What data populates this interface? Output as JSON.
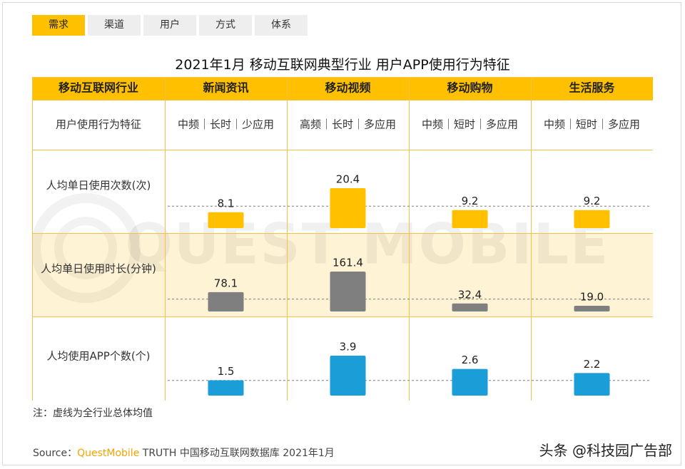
{
  "tabs": [
    {
      "label": "需求",
      "active": true
    },
    {
      "label": "渠道",
      "active": false
    },
    {
      "label": "用户",
      "active": false
    },
    {
      "label": "方式",
      "active": false
    },
    {
      "label": "体系",
      "active": false
    }
  ],
  "chart_data": {
    "type": "table",
    "title": "2021年1月 移动互联网典型行业 用户APP使用行为特征",
    "header_label": "移动互联网行业",
    "industries": [
      "新闻资讯",
      "移动视频",
      "移动购物",
      "生活服务"
    ],
    "behavior_label": "用户使用行为特征",
    "behaviors": [
      "中频｜长时｜少应用",
      "高频｜长时｜多应用",
      "中频｜短时｜多应用",
      "中频｜短时｜多应用"
    ],
    "series": [
      {
        "name": "人均单日使用次数(次)",
        "values": [
          8.1,
          20.4,
          9.2,
          9.2
        ],
        "labels": [
          "8.1",
          "20.4",
          "9.2",
          "9.2"
        ],
        "average_ratio": 0.55,
        "color": "#ffc000"
      },
      {
        "name": "人均单日使用时长(分钟)",
        "values": [
          78.1,
          161.4,
          32.4,
          19.0
        ],
        "labels": [
          "78.1",
          "161.4",
          "32.4",
          "19.0"
        ],
        "average_ratio": 0.31,
        "color": "#7f7f7f"
      },
      {
        "name": "人均使用APP个数(个)",
        "values": [
          1.5,
          3.9,
          2.6,
          2.2
        ],
        "labels": [
          "1.5",
          "3.9",
          "2.6",
          "2.2"
        ],
        "average_ratio": 0.38,
        "color": "#1b9ed8"
      }
    ],
    "note": "注：虚线为全行业总体均值"
  },
  "colors": {
    "header": "#ffc000",
    "band": "#fff3d6",
    "border": "#f5c04a",
    "avg_line": "#7f7f7f"
  },
  "source": {
    "prefix": "Source：",
    "brand": "QuestMobile",
    "text": " TRUTH 中国移动互联网数据库 2021年1月"
  },
  "credit": "头条 @科技园广告部",
  "watermark": "QUEST MOBILE"
}
